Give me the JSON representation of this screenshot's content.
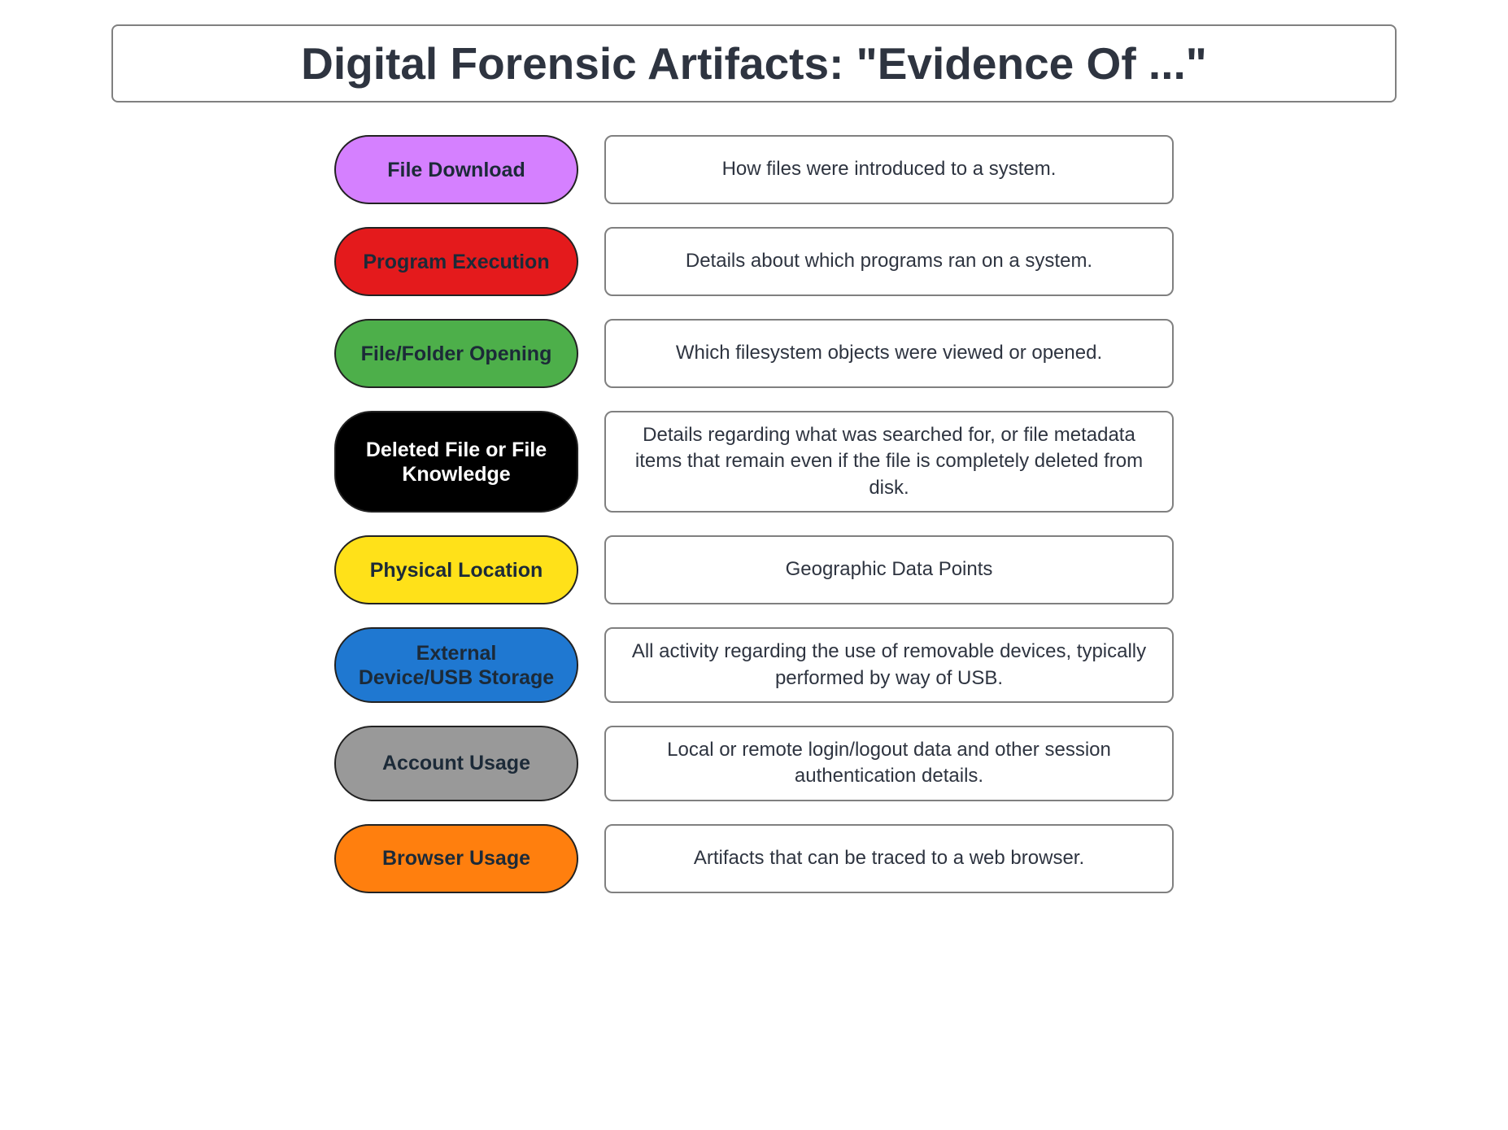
{
  "title": "Digital Forensic Artifacts: \"Evidence Of ...\"",
  "colors": {
    "title_text": "#2e3440",
    "desc_text": "#2e3440",
    "pill_text_dark": "#1c2a38",
    "pill_text_light": "#ffffff",
    "border_gray": "#808080",
    "border_dark": "#222222",
    "background": "#ffffff"
  },
  "rows": [
    {
      "label": "File Download",
      "description": "How files were introduced to a system.",
      "pill_bg": "#d580ff",
      "pill_text": "#1c2a38"
    },
    {
      "label": "Program Execution",
      "description": "Details about which programs ran on a system.",
      "pill_bg": "#e41a1c",
      "pill_text": "#1c2a38"
    },
    {
      "label": "File/Folder Opening",
      "description": "Which filesystem objects were viewed or opened.",
      "pill_bg": "#4daf4a",
      "pill_text": "#1c2a38"
    },
    {
      "label": "Deleted File or File Knowledge",
      "description": "Details regarding what was searched for, or file metadata items that remain even if the file is completely deleted from disk.",
      "pill_bg": "#000000",
      "pill_text": "#ffffff"
    },
    {
      "label": "Physical Location",
      "description": "Geographic Data Points",
      "pill_bg": "#ffe119",
      "pill_text": "#1c2a38"
    },
    {
      "label": "External Device/USB Storage",
      "description": "All activity regarding the use of removable devices, typically performed by way of USB.",
      "pill_bg": "#1f78d1",
      "pill_text": "#1c2a38"
    },
    {
      "label": "Account Usage",
      "description": "Local or remote login/logout data and other session authentication details.",
      "pill_bg": "#999999",
      "pill_text": "#1c2a38"
    },
    {
      "label": "Browser Usage",
      "description": "Artifacts that can be traced to a web browser.",
      "pill_bg": "#ff7f0e",
      "pill_text": "#1c2a38"
    }
  ]
}
